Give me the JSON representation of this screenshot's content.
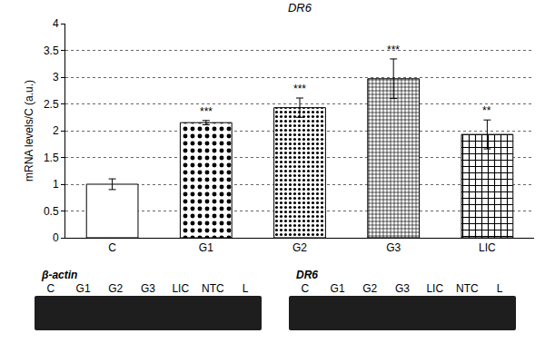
{
  "chart_data": {
    "type": "bar",
    "title": "DR6",
    "y_label": "mRNA levels/C (a.u.)",
    "categories": [
      "C",
      "G1",
      "G2",
      "G3",
      "LIC"
    ],
    "values": [
      1.0,
      2.15,
      2.43,
      2.97,
      1.93
    ],
    "errors": [
      0.1,
      0.04,
      0.18,
      0.37,
      0.27
    ],
    "annotations": [
      {
        "category": "G1",
        "text": "***"
      },
      {
        "category": "G2",
        "text": "***"
      },
      {
        "category": "G3",
        "text": "***"
      },
      {
        "category": "LIC",
        "text": "**"
      }
    ],
    "color": "#ffffff",
    "ylim": [
      0,
      4
    ],
    "yticks": [
      0,
      0.5,
      1,
      1.5,
      2,
      2.5,
      3,
      3.5,
      4
    ],
    "grid": true
  },
  "gels": [
    {
      "label": "β-actin",
      "lanes": [
        "C",
        "G1",
        "G2",
        "G3",
        "LIC",
        "NTC",
        "L"
      ]
    },
    {
      "label": "DR6",
      "lanes": [
        "C",
        "G1",
        "G2",
        "G3",
        "LIC",
        "NTC",
        "L"
      ]
    }
  ]
}
